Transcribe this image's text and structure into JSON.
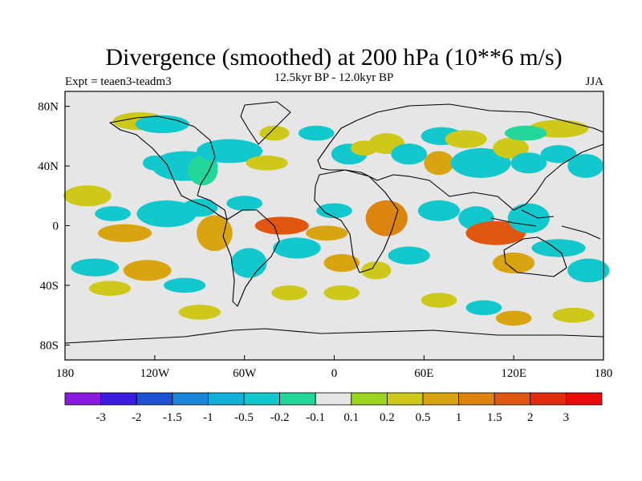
{
  "chart_data": {
    "type": "heatmap",
    "title": "Divergence (smoothed) at 200 hPa (10**6 m/s)",
    "left_label": "Expt = teaen3-teadm3",
    "center_label": "12.5kyr BP - 12.0kyr BP",
    "right_label": "JJA",
    "x_ticks": [
      "180",
      "120W",
      "60W",
      "0",
      "60E",
      "120E",
      "180"
    ],
    "x_tick_values": [
      -180,
      -120,
      -60,
      0,
      60,
      120,
      180
    ],
    "y_ticks": [
      "80N",
      "40N",
      "0",
      "40S",
      "80S"
    ],
    "y_tick_values": [
      80,
      40,
      0,
      -40,
      -80
    ],
    "xlim": [
      -180,
      180
    ],
    "ylim": [
      -90,
      90
    ],
    "colorbar": {
      "labels": [
        "-3",
        "-2",
        "-1.5",
        "-1",
        "-0.5",
        "-0.2",
        "-0.1",
        "0.1",
        "0.2",
        "0.5",
        "1",
        "1.5",
        "2",
        "3"
      ],
      "colors": [
        "#8b1ae0",
        "#3b1ddf",
        "#1d52d6",
        "#1a86d8",
        "#12b0d8",
        "#12c8cc",
        "#22d69c",
        "#e6e6e6",
        "#9ad41e",
        "#cec81a",
        "#d8a412",
        "#dc8410",
        "#e0560e",
        "#e22c10",
        "#e80a0a"
      ]
    },
    "anomaly_blobs": [
      {
        "lon": -130,
        "lat": 70,
        "v": 0.25,
        "rx": 18,
        "ry": 6
      },
      {
        "lon": -115,
        "lat": 68,
        "v": -0.3,
        "rx": 18,
        "ry": 6
      },
      {
        "lon": -120,
        "lat": 42,
        "v": -0.3,
        "rx": 8,
        "ry": 5
      },
      {
        "lon": -100,
        "lat": 40,
        "v": -0.5,
        "rx": 22,
        "ry": 10
      },
      {
        "lon": -88,
        "lat": 37,
        "v": -0.2,
        "rx": 10,
        "ry": 10
      },
      {
        "lon": -70,
        "lat": 50,
        "v": -0.3,
        "rx": 22,
        "ry": 8
      },
      {
        "lon": -45,
        "lat": 42,
        "v": 0.2,
        "rx": 14,
        "ry": 5
      },
      {
        "lon": -40,
        "lat": 62,
        "v": 0.2,
        "rx": 10,
        "ry": 5
      },
      {
        "lon": -12,
        "lat": 62,
        "v": -0.3,
        "rx": 12,
        "ry": 5
      },
      {
        "lon": 10,
        "lat": 48,
        "v": -0.3,
        "rx": 12,
        "ry": 7
      },
      {
        "lon": 20,
        "lat": 52,
        "v": 0.2,
        "rx": 9,
        "ry": 5
      },
      {
        "lon": 35,
        "lat": 55,
        "v": 0.3,
        "rx": 12,
        "ry": 7
      },
      {
        "lon": 50,
        "lat": 48,
        "v": -0.3,
        "rx": 12,
        "ry": 7
      },
      {
        "lon": 72,
        "lat": 60,
        "v": -0.3,
        "rx": 14,
        "ry": 6
      },
      {
        "lon": 70,
        "lat": 42,
        "v": 0.5,
        "rx": 10,
        "ry": 8
      },
      {
        "lon": 88,
        "lat": 58,
        "v": 0.3,
        "rx": 14,
        "ry": 6
      },
      {
        "lon": 98,
        "lat": 42,
        "v": -0.5,
        "rx": 20,
        "ry": 10
      },
      {
        "lon": 118,
        "lat": 52,
        "v": 0.2,
        "rx": 12,
        "ry": 7
      },
      {
        "lon": 130,
        "lat": 42,
        "v": -0.3,
        "rx": 12,
        "ry": 7
      },
      {
        "lon": 150,
        "lat": 48,
        "v": -0.3,
        "rx": 12,
        "ry": 6
      },
      {
        "lon": 168,
        "lat": 40,
        "v": -0.3,
        "rx": 12,
        "ry": 8
      },
      {
        "lon": 150,
        "lat": 65,
        "v": 0.2,
        "rx": 20,
        "ry": 6
      },
      {
        "lon": 128,
        "lat": 62,
        "v": -0.2,
        "rx": 14,
        "ry": 5
      },
      {
        "lon": -165,
        "lat": 20,
        "v": 0.3,
        "rx": 16,
        "ry": 7
      },
      {
        "lon": -148,
        "lat": 8,
        "v": -0.3,
        "rx": 12,
        "ry": 5
      },
      {
        "lon": -140,
        "lat": -5,
        "v": 0.5,
        "rx": 18,
        "ry": 6
      },
      {
        "lon": -112,
        "lat": 8,
        "v": -0.5,
        "rx": 20,
        "ry": 9
      },
      {
        "lon": -90,
        "lat": 12,
        "v": -0.3,
        "rx": 12,
        "ry": 6
      },
      {
        "lon": -80,
        "lat": -5,
        "v": 0.5,
        "rx": 12,
        "ry": 12
      },
      {
        "lon": -60,
        "lat": 15,
        "v": -0.3,
        "rx": 12,
        "ry": 5
      },
      {
        "lon": -57,
        "lat": -25,
        "v": -0.5,
        "rx": 12,
        "ry": 10
      },
      {
        "lon": -35,
        "lat": 0,
        "v": 1.5,
        "rx": 18,
        "ry": 6
      },
      {
        "lon": -25,
        "lat": -15,
        "v": -0.5,
        "rx": 16,
        "ry": 7
      },
      {
        "lon": -5,
        "lat": -5,
        "v": 0.5,
        "rx": 14,
        "ry": 5
      },
      {
        "lon": 0,
        "lat": 10,
        "v": -0.3,
        "rx": 12,
        "ry": 5
      },
      {
        "lon": 5,
        "lat": -25,
        "v": 0.5,
        "rx": 12,
        "ry": 6
      },
      {
        "lon": 35,
        "lat": 5,
        "v": 1.0,
        "rx": 14,
        "ry": 12
      },
      {
        "lon": 28,
        "lat": -30,
        "v": 0.2,
        "rx": 10,
        "ry": 6
      },
      {
        "lon": 50,
        "lat": -20,
        "v": -0.5,
        "rx": 14,
        "ry": 6
      },
      {
        "lon": 70,
        "lat": 10,
        "v": -0.3,
        "rx": 14,
        "ry": 7
      },
      {
        "lon": 95,
        "lat": 5,
        "v": -0.5,
        "rx": 12,
        "ry": 8
      },
      {
        "lon": 108,
        "lat": -5,
        "v": 1.5,
        "rx": 20,
        "ry": 8
      },
      {
        "lon": 130,
        "lat": 5,
        "v": -0.5,
        "rx": 14,
        "ry": 10
      },
      {
        "lon": 150,
        "lat": -15,
        "v": -0.5,
        "rx": 18,
        "ry": 6
      },
      {
        "lon": 120,
        "lat": -25,
        "v": 0.5,
        "rx": 14,
        "ry": 7
      },
      {
        "lon": 170,
        "lat": -30,
        "v": -0.5,
        "rx": 14,
        "ry": 8
      },
      {
        "lon": -160,
        "lat": -28,
        "v": -0.3,
        "rx": 16,
        "ry": 6
      },
      {
        "lon": -125,
        "lat": -30,
        "v": 0.5,
        "rx": 16,
        "ry": 7
      },
      {
        "lon": -100,
        "lat": -40,
        "v": -0.3,
        "rx": 14,
        "ry": 5
      },
      {
        "lon": -150,
        "lat": -42,
        "v": 0.3,
        "rx": 14,
        "ry": 5
      },
      {
        "lon": -90,
        "lat": -58,
        "v": 0.3,
        "rx": 14,
        "ry": 5
      },
      {
        "lon": -30,
        "lat": -45,
        "v": 0.3,
        "rx": 12,
        "ry": 5
      },
      {
        "lon": 5,
        "lat": -45,
        "v": 0.3,
        "rx": 12,
        "ry": 5
      },
      {
        "lon": 100,
        "lat": -55,
        "v": -0.3,
        "rx": 12,
        "ry": 5
      },
      {
        "lon": 120,
        "lat": -62,
        "v": 0.5,
        "rx": 12,
        "ry": 5
      },
      {
        "lon": 160,
        "lat": -60,
        "v": 0.3,
        "rx": 14,
        "ry": 5
      },
      {
        "lon": 70,
        "lat": -50,
        "v": 0.3,
        "rx": 12,
        "ry": 5
      }
    ]
  }
}
